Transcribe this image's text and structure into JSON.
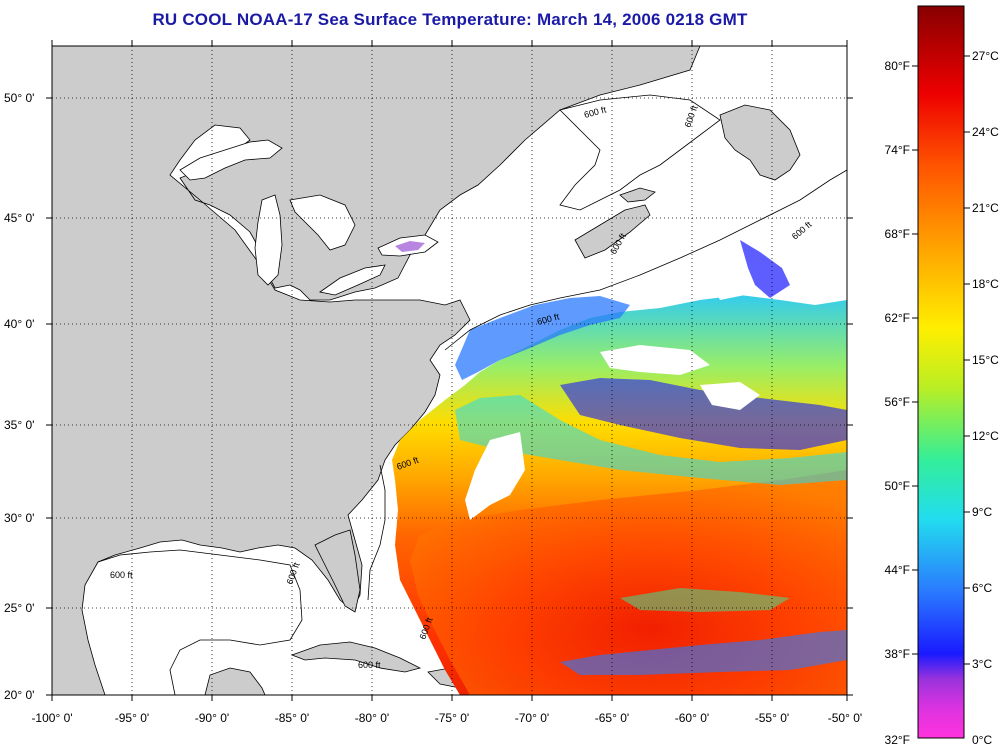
{
  "title": "RU COOL  NOAA-17  Sea Surface Temperature:  March 14, 2006 0218 GMT",
  "latitude_labels": [
    "50° 0'",
    "45° 0'",
    "40° 0'",
    "35° 0'",
    "30° 0'",
    "25° 0'",
    "20° 0'"
  ],
  "longitude_labels": [
    "-100° 0'",
    "-95° 0'",
    "-90° 0'",
    "-85° 0'",
    "-80° 0'",
    "-75° 0'",
    "-70° 0'",
    "-65° 0'",
    "-60° 0'",
    "-55° 0'",
    "-50° 0'"
  ],
  "depth_contour_labels": [
    "600 ft",
    "600 ft",
    "600 ft",
    "600 ft",
    "600 ft",
    "600 ft",
    "600 ft",
    "600 ft",
    "600 ft",
    "600 ft"
  ],
  "colorbar": {
    "fahrenheit_labels": [
      "80°F",
      "74°F",
      "68°F",
      "62°F",
      "56°F",
      "50°F",
      "44°F",
      "38°F",
      "32°F"
    ],
    "celsius_labels": [
      "27°C",
      "24°C",
      "21°C",
      "18°C",
      "15°C",
      "12°C",
      "9°C",
      "6°C",
      "3°C",
      "0°C"
    ],
    "colors": [
      "#ff33dd",
      "#9a33dd",
      "#1a1aff",
      "#2a9aff",
      "#22ddee",
      "#33ee99",
      "#bbee22",
      "#ffee00",
      "#ffaa00",
      "#ff5500",
      "#ee0000",
      "#aa0000",
      "#880000"
    ]
  },
  "colors": {
    "land": "#cccccc",
    "ocean_no_data": "#ffffff",
    "title": "#1a1aa6",
    "grid": "#000000"
  }
}
